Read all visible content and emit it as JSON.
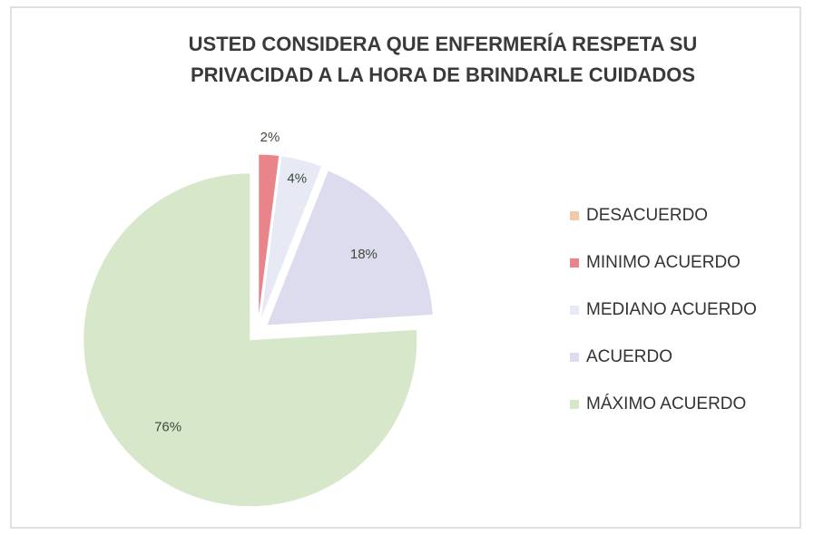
{
  "chart_data": {
    "type": "pie",
    "title": [
      "USTED CONSIDERA QUE ENFERMERÍA RESPETA SU",
      "PRIVACIDAD A LA HORA DE BRINDARLE CUIDADOS"
    ],
    "categories": [
      "DESACUERDO",
      "MINIMO ACUERDO",
      "MEDIANO ACUERDO",
      "ACUERDO",
      "MÁXIMO ACUERDO"
    ],
    "values": [
      0,
      2,
      4,
      18,
      76
    ],
    "value_labels": [
      null,
      "2%",
      "4%",
      "18%",
      "76%"
    ],
    "colors": [
      "#f4c9a9",
      "#e9858a",
      "#e7eaf5",
      "#dddcef",
      "#d6e8c9"
    ],
    "legend": "right"
  }
}
